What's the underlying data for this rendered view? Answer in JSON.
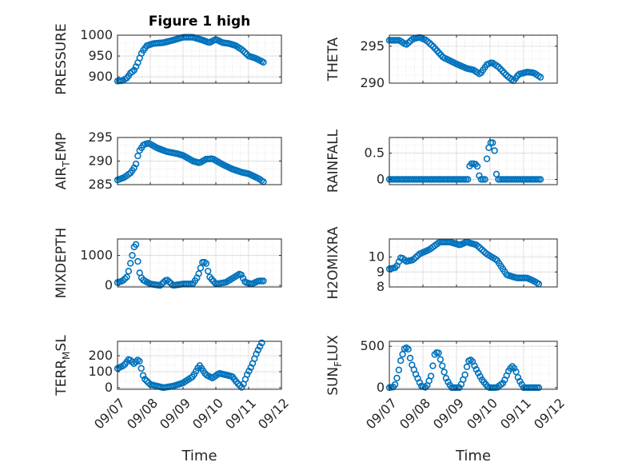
{
  "figure": {
    "title": "Figure 1 high"
  },
  "colors": {
    "marker": "#0072BD",
    "axis": "#262626",
    "grid": "#d8d8d8"
  },
  "chart_data": [
    {
      "id": "pressure",
      "type": "scatter",
      "ylabel": "PRESSURE",
      "ylabel_sub": "",
      "ylabel_rest": "",
      "xlabel": "",
      "ylim": [
        885,
        1000
      ],
      "yticks": [
        900,
        950,
        1000
      ],
      "xlim": [
        0,
        5
      ],
      "xticks": [],
      "show_xticklabels": false,
      "grid": true,
      "minor_grid": true,
      "title": "Figure 1 high",
      "series": [
        {
          "knots": [
            [
              0,
              890
            ],
            [
              0.15,
              891
            ],
            [
              0.3,
              898
            ],
            [
              0.4,
              910
            ],
            [
              0.5,
              915
            ],
            [
              0.6,
              930
            ],
            [
              0.75,
              960
            ],
            [
              0.9,
              975
            ],
            [
              1.1,
              980
            ],
            [
              1.4,
              982
            ],
            [
              1.7,
              988
            ],
            [
              2.0,
              995
            ],
            [
              2.3,
              995
            ],
            [
              2.6,
              988
            ],
            [
              2.8,
              982
            ],
            [
              3.0,
              990
            ],
            [
              3.2,
              982
            ],
            [
              3.4,
              980
            ],
            [
              3.6,
              975
            ],
            [
              3.8,
              965
            ],
            [
              4.0,
              950
            ],
            [
              4.2,
              945
            ],
            [
              4.45,
              935
            ]
          ],
          "n": 80
        }
      ]
    },
    {
      "id": "theta",
      "type": "scatter",
      "ylabel": "THETA",
      "ylabel_sub": "",
      "ylabel_rest": "",
      "xlabel": "",
      "ylim": [
        290,
        296.5
      ],
      "yticks": [
        290,
        295
      ],
      "xlim": [
        0,
        5
      ],
      "xticks": [],
      "show_xticklabels": false,
      "grid": true,
      "minor_grid": true,
      "title": "",
      "series": [
        {
          "knots": [
            [
              0,
              295.8
            ],
            [
              0.3,
              295.8
            ],
            [
              0.5,
              295.2
            ],
            [
              0.7,
              296
            ],
            [
              0.9,
              296.2
            ],
            [
              1.1,
              295.8
            ],
            [
              1.3,
              295
            ],
            [
              1.6,
              293.5
            ],
            [
              2.0,
              292.6
            ],
            [
              2.3,
              292
            ],
            [
              2.5,
              291.8
            ],
            [
              2.7,
              291.2
            ],
            [
              2.9,
              292.5
            ],
            [
              3.05,
              292.8
            ],
            [
              3.25,
              292.2
            ],
            [
              3.5,
              291
            ],
            [
              3.7,
              290.3
            ],
            [
              3.85,
              291.2
            ],
            [
              4.1,
              291.5
            ],
            [
              4.3,
              291.4
            ],
            [
              4.5,
              290.8
            ]
          ],
          "n": 80
        }
      ]
    },
    {
      "id": "air_temp",
      "type": "scatter",
      "ylabel": "AIR",
      "ylabel_sub": "T",
      "ylabel_rest": "EMP",
      "xlabel": "",
      "ylim": [
        285,
        295
      ],
      "yticks": [
        285,
        290,
        295
      ],
      "xlim": [
        0,
        5
      ],
      "xticks": [],
      "show_xticklabels": false,
      "grid": true,
      "minor_grid": true,
      "title": "",
      "series": [
        {
          "knots": [
            [
              0,
              286
            ],
            [
              0.2,
              286.5
            ],
            [
              0.4,
              287.5
            ],
            [
              0.55,
              289
            ],
            [
              0.65,
              292
            ],
            [
              0.8,
              293.5
            ],
            [
              0.95,
              293.8
            ],
            [
              1.2,
              292.8
            ],
            [
              1.5,
              292
            ],
            [
              1.8,
              291.6
            ],
            [
              2.0,
              291.2
            ],
            [
              2.3,
              290
            ],
            [
              2.5,
              289.6
            ],
            [
              2.7,
              290.4
            ],
            [
              2.9,
              290.5
            ],
            [
              3.2,
              289.3
            ],
            [
              3.5,
              288.3
            ],
            [
              3.8,
              287.6
            ],
            [
              4.0,
              287.3
            ],
            [
              4.3,
              286.3
            ],
            [
              4.45,
              285.6
            ]
          ],
          "n": 80
        }
      ]
    },
    {
      "id": "rainfall",
      "type": "scatter",
      "ylabel": "RAINFALL",
      "ylabel_sub": "",
      "ylabel_rest": "",
      "xlabel": "",
      "ylim": [
        -0.1,
        0.8
      ],
      "yticks": [
        0,
        0.5
      ],
      "xlim": [
        0,
        5
      ],
      "xticks": [],
      "show_xticklabels": false,
      "grid": true,
      "minor_grid": true,
      "title": "",
      "series": [
        {
          "knots": [
            [
              0,
              0
            ],
            [
              2.35,
              0
            ],
            [
              2.4,
              0.3
            ],
            [
              2.55,
              0.3
            ],
            [
              2.62,
              0.25
            ],
            [
              2.7,
              0
            ],
            [
              2.85,
              0
            ],
            [
              2.92,
              0.5
            ],
            [
              3.0,
              0.7
            ],
            [
              3.08,
              0.7
            ],
            [
              3.15,
              0.5
            ],
            [
              3.2,
              0
            ],
            [
              4.5,
              0
            ]
          ],
          "n": 80
        }
      ]
    },
    {
      "id": "mixdepth",
      "type": "scatter",
      "ylabel": "MIXDEPTH",
      "ylabel_sub": "",
      "ylabel_rest": "",
      "xlabel": "",
      "ylim": [
        -50,
        1550
      ],
      "yticks": [
        0,
        1000
      ],
      "xlim": [
        0,
        5
      ],
      "xticks": [],
      "show_xticklabels": false,
      "grid": true,
      "minor_grid": true,
      "title": "",
      "series": [
        {
          "knots": [
            [
              0,
              100
            ],
            [
              0.15,
              150
            ],
            [
              0.3,
              300
            ],
            [
              0.45,
              1000
            ],
            [
              0.55,
              1500
            ],
            [
              0.65,
              500
            ],
            [
              0.75,
              200
            ],
            [
              1.0,
              50
            ],
            [
              1.3,
              0
            ],
            [
              1.5,
              200
            ],
            [
              1.7,
              0
            ],
            [
              2.0,
              50
            ],
            [
              2.3,
              50
            ],
            [
              2.45,
              300
            ],
            [
              2.6,
              800
            ],
            [
              2.7,
              750
            ],
            [
              2.8,
              300
            ],
            [
              3.0,
              50
            ],
            [
              3.3,
              100
            ],
            [
              3.6,
              300
            ],
            [
              3.75,
              400
            ],
            [
              3.9,
              100
            ],
            [
              4.1,
              50
            ],
            [
              4.3,
              150
            ],
            [
              4.45,
              150
            ]
          ],
          "n": 80
        }
      ]
    },
    {
      "id": "h2omixra",
      "type": "scatter",
      "ylabel": "H2OMIXRA",
      "ylabel_sub": "",
      "ylabel_rest": "",
      "xlabel": "",
      "ylim": [
        8,
        11.2
      ],
      "yticks": [
        8,
        9,
        10
      ],
      "xlim": [
        0,
        5
      ],
      "xticks": [],
      "show_xticklabels": false,
      "grid": true,
      "minor_grid": true,
      "title": "",
      "series": [
        {
          "knots": [
            [
              0,
              9.2
            ],
            [
              0.2,
              9.3
            ],
            [
              0.35,
              10
            ],
            [
              0.5,
              9.7
            ],
            [
              0.7,
              9.8
            ],
            [
              0.9,
              10.2
            ],
            [
              1.2,
              10.5
            ],
            [
              1.5,
              11
            ],
            [
              1.8,
              11
            ],
            [
              2.1,
              10.8
            ],
            [
              2.3,
              11
            ],
            [
              2.6,
              10.8
            ],
            [
              2.9,
              10.2
            ],
            [
              3.2,
              9.8
            ],
            [
              3.5,
              8.8
            ],
            [
              3.8,
              8.6
            ],
            [
              4.1,
              8.6
            ],
            [
              4.3,
              8.4
            ],
            [
              4.45,
              8.2
            ]
          ],
          "n": 80
        }
      ]
    },
    {
      "id": "terr_msl",
      "type": "scatter",
      "ylabel": "TERR",
      "ylabel_sub": "M",
      "ylabel_rest": "SL",
      "xlabel": "Time",
      "ylim": [
        -10,
        290
      ],
      "yticks": [
        0,
        100,
        200
      ],
      "xlim": [
        0,
        5
      ],
      "xticks": [
        "09/07",
        "09/08",
        "09/09",
        "09/10",
        "09/11",
        "09/12"
      ],
      "show_xticklabels": true,
      "grid": true,
      "minor_grid": true,
      "title": "",
      "series": [
        {
          "knots": [
            [
              0,
              120
            ],
            [
              0.2,
              140
            ],
            [
              0.35,
              180
            ],
            [
              0.5,
              150
            ],
            [
              0.65,
              180
            ],
            [
              0.8,
              60
            ],
            [
              1.0,
              20
            ],
            [
              1.2,
              10
            ],
            [
              1.4,
              0
            ],
            [
              1.7,
              10
            ],
            [
              2.0,
              30
            ],
            [
              2.3,
              70
            ],
            [
              2.5,
              140
            ],
            [
              2.7,
              80
            ],
            [
              2.9,
              60
            ],
            [
              3.1,
              90
            ],
            [
              3.3,
              80
            ],
            [
              3.5,
              70
            ],
            [
              3.65,
              30
            ],
            [
              3.8,
              0
            ],
            [
              3.95,
              80
            ],
            [
              4.1,
              140
            ],
            [
              4.25,
              220
            ],
            [
              4.4,
              280
            ]
          ],
          "n": 80
        }
      ]
    },
    {
      "id": "sun_flux",
      "type": "scatter",
      "ylabel": "SUN",
      "ylabel_sub": "F",
      "ylabel_rest": "LUX",
      "xlabel": "Time",
      "ylim": [
        -20,
        560
      ],
      "yticks": [
        0,
        500
      ],
      "xlim": [
        0,
        5
      ],
      "xticks": [
        "09/07",
        "09/08",
        "09/09",
        "09/10",
        "09/11",
        "09/12"
      ],
      "show_xticklabels": true,
      "grid": true,
      "minor_grid": true,
      "title": "",
      "series": [
        {
          "knots": [
            [
              0,
              0
            ],
            [
              0.15,
              10
            ],
            [
              0.25,
              150
            ],
            [
              0.35,
              350
            ],
            [
              0.45,
              470
            ],
            [
              0.55,
              490
            ],
            [
              0.65,
              300
            ],
            [
              0.8,
              150
            ],
            [
              0.95,
              20
            ],
            [
              1.1,
              0
            ],
            [
              1.25,
              150
            ],
            [
              1.35,
              400
            ],
            [
              1.45,
              440
            ],
            [
              1.55,
              300
            ],
            [
              1.7,
              100
            ],
            [
              1.85,
              0
            ],
            [
              2.1,
              0
            ],
            [
              2.25,
              150
            ],
            [
              2.35,
              320
            ],
            [
              2.45,
              340
            ],
            [
              2.55,
              250
            ],
            [
              2.75,
              100
            ],
            [
              2.95,
              0
            ],
            [
              3.2,
              0
            ],
            [
              3.4,
              60
            ],
            [
              3.55,
              200
            ],
            [
              3.65,
              260
            ],
            [
              3.75,
              220
            ],
            [
              3.85,
              100
            ],
            [
              4.0,
              0
            ],
            [
              4.45,
              0
            ]
          ],
          "n": 80
        }
      ]
    }
  ]
}
